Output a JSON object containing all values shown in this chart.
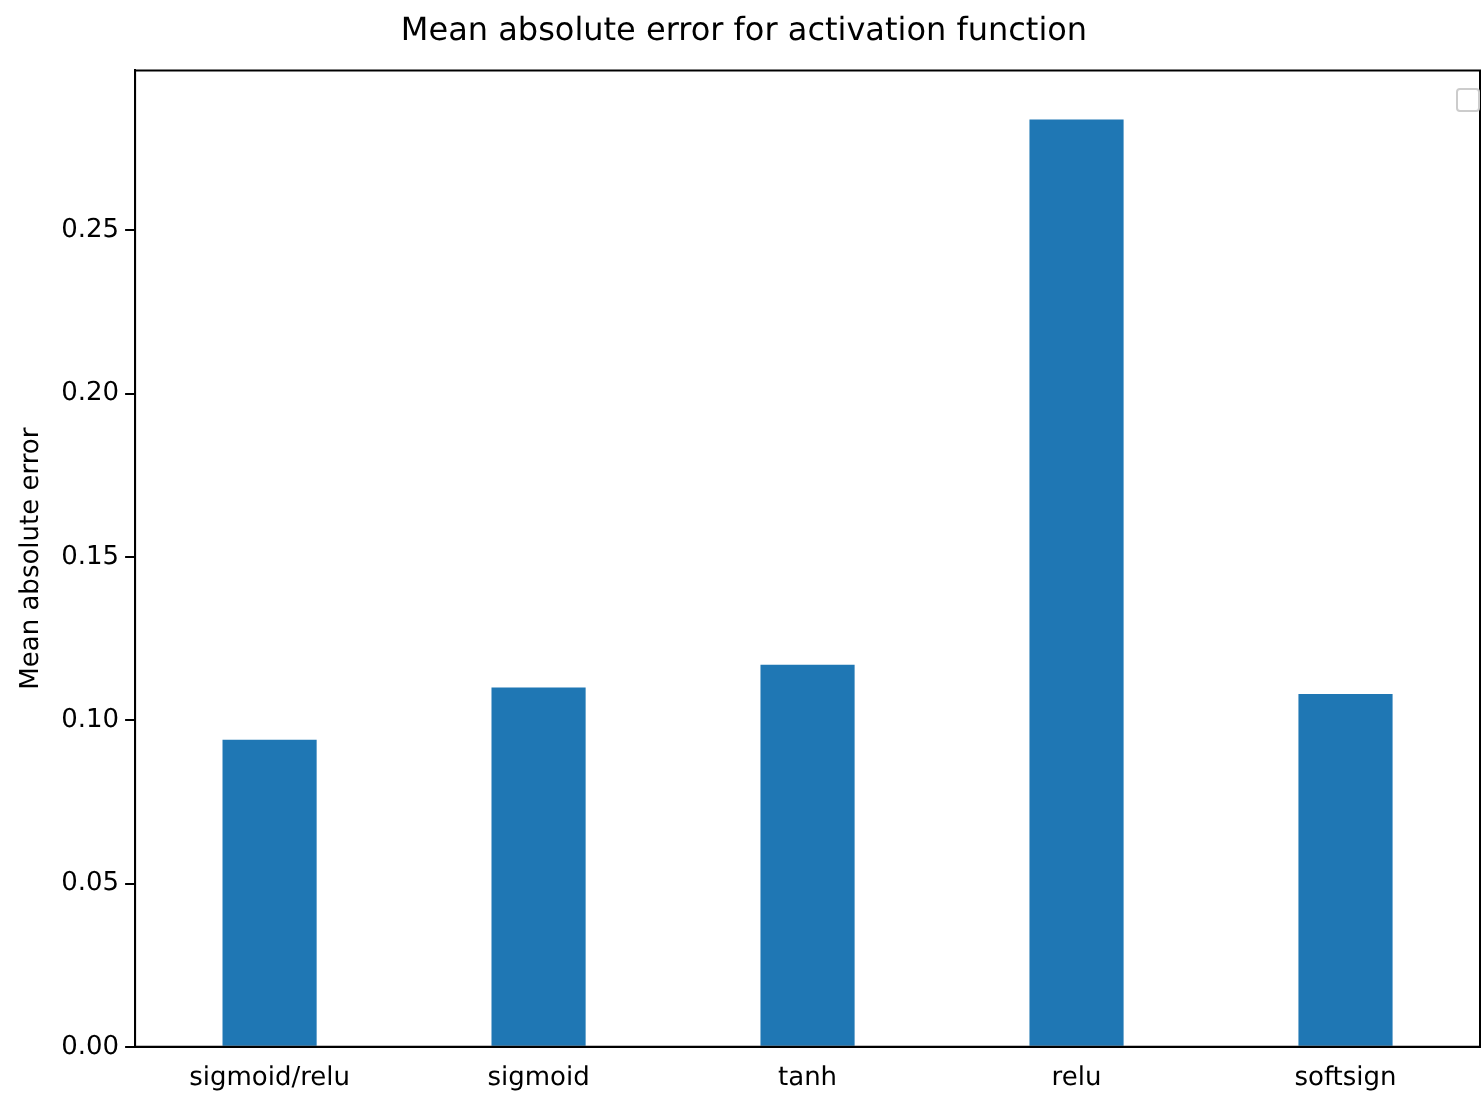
{
  "chart_data": {
    "type": "bar",
    "title": "Mean absolute error for activation function",
    "ylabel": "Mean absolute error",
    "categories": [
      "sigmoid/relu",
      "sigmoid",
      "tanh",
      "relu",
      "softsign"
    ],
    "values": [
      0.094,
      0.11,
      0.117,
      0.284,
      0.108
    ],
    "color": "#1f77b4",
    "ylim": [
      0,
      0.299
    ],
    "yticks": [
      {
        "value": 0,
        "label": "0.00"
      },
      {
        "value": 0.05,
        "label": "0.05"
      },
      {
        "value": 0.1,
        "label": "0.10"
      },
      {
        "value": 0.15,
        "label": "0.15"
      },
      {
        "value": 0.2,
        "label": "0.20"
      },
      {
        "value": 0.25,
        "label": "0.25"
      }
    ],
    "grid": false
  }
}
